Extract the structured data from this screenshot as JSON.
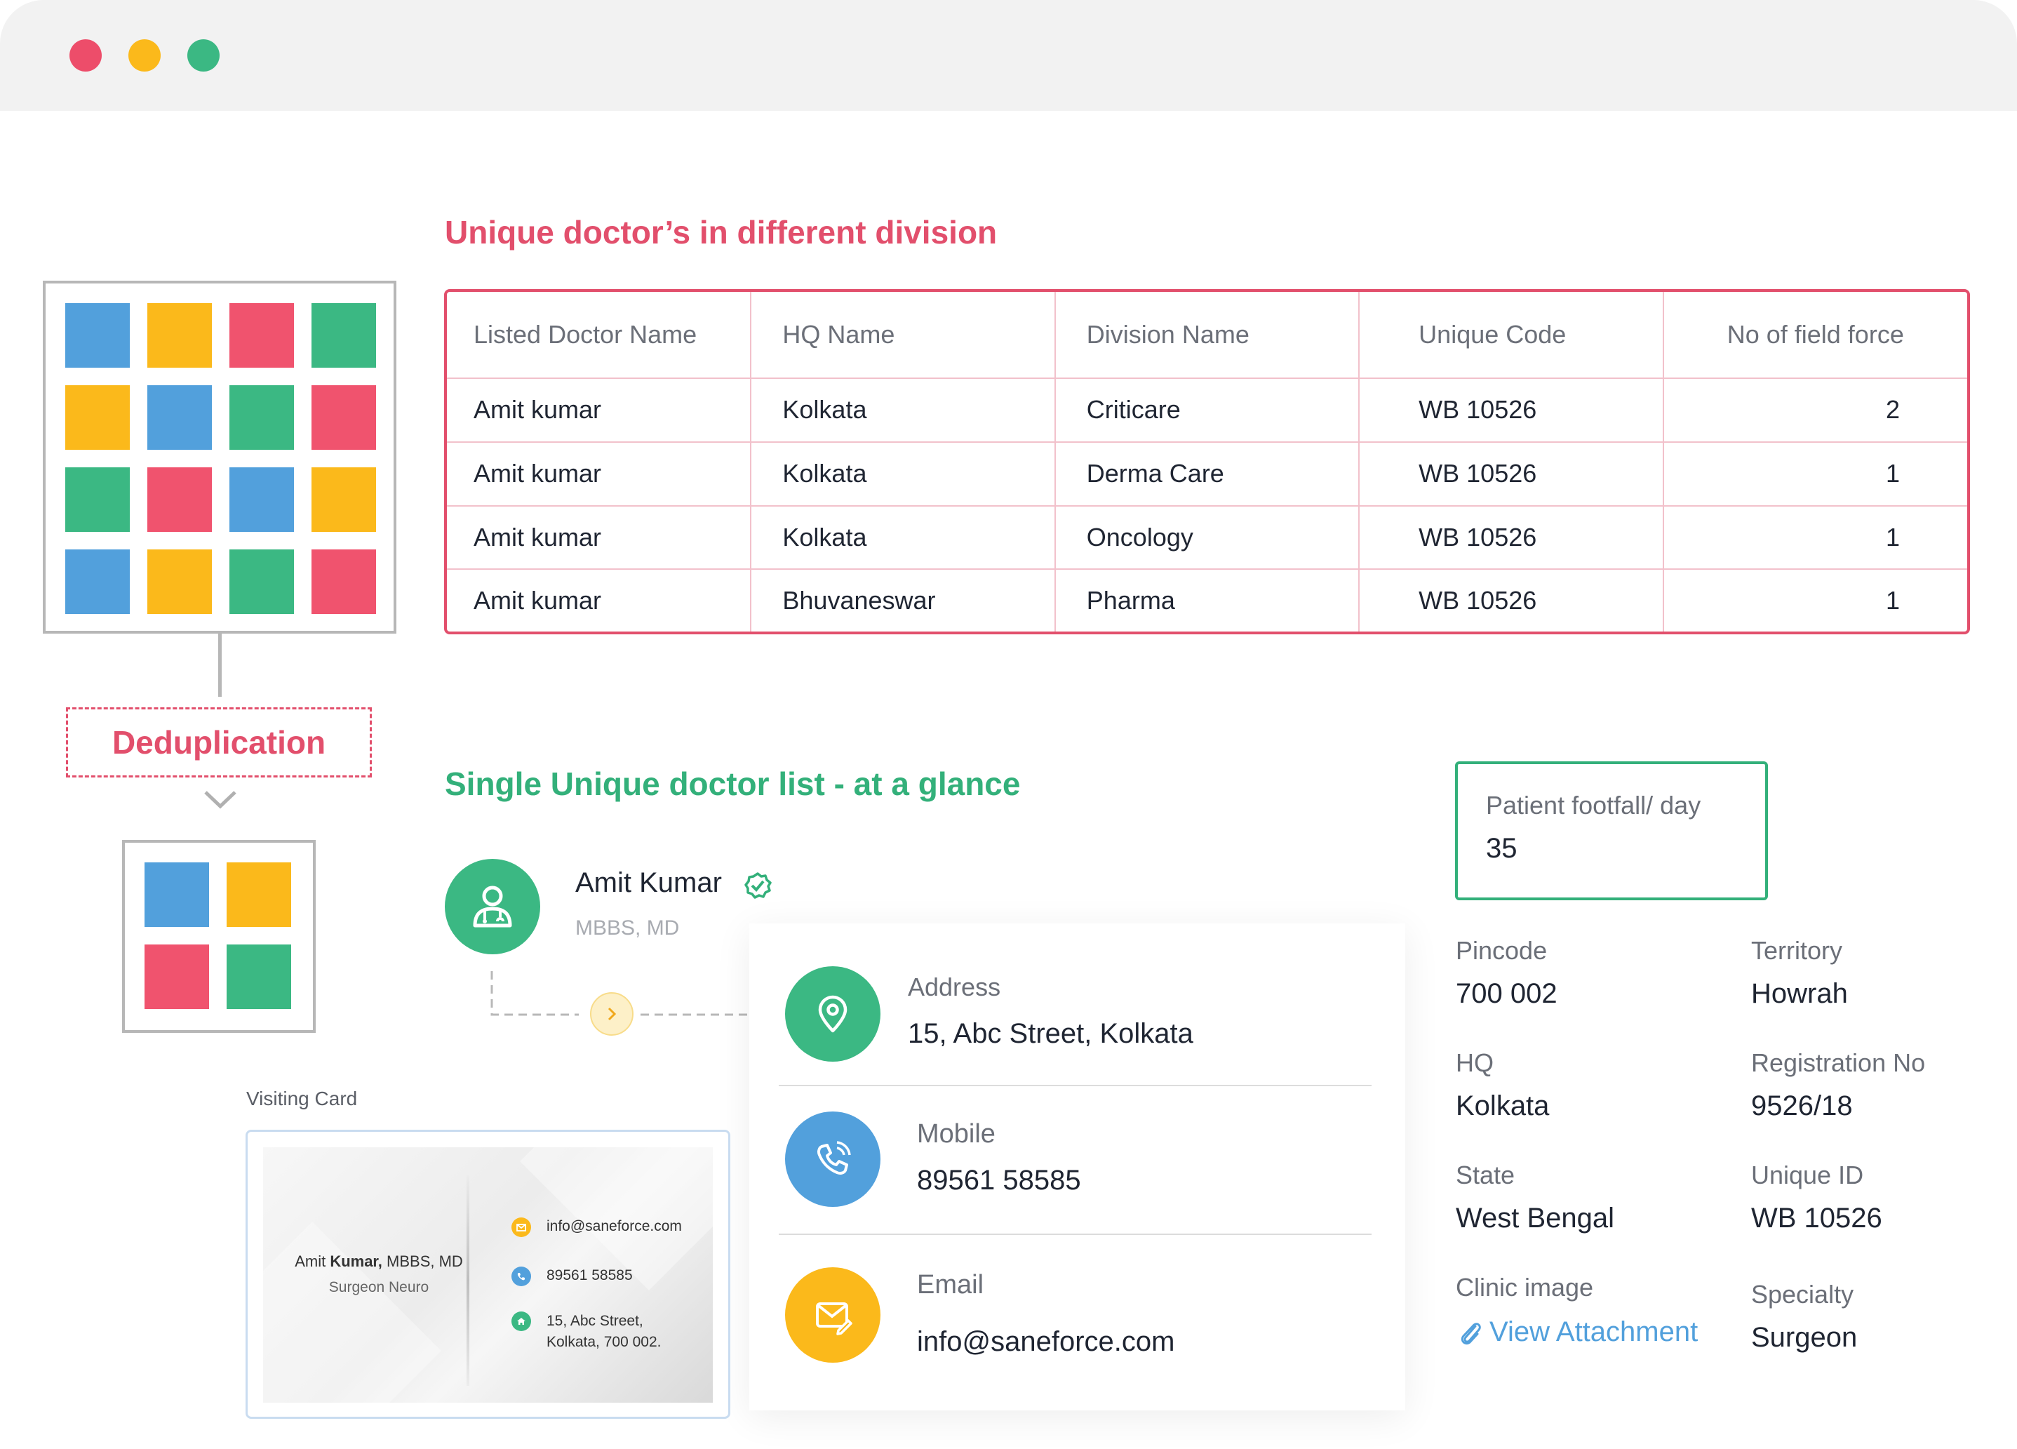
{
  "colors": {
    "red": "#f0536e",
    "yellow": "#fbb91b",
    "green": "#3bb883",
    "blue": "#52a0dc",
    "accent_red": "#e24f6c",
    "accent_green": "#33b07a"
  },
  "window": {
    "controls": [
      "close",
      "minimize",
      "maximize"
    ]
  },
  "unique_section": {
    "title": "Unique doctor’s in different division",
    "columns": [
      "Listed Doctor Name",
      "HQ Name",
      "Division Name",
      "Unique Code",
      "No of field force"
    ],
    "rows": [
      [
        "Amit kumar",
        "Kolkata",
        "Criticare",
        "WB 10526",
        "2"
      ],
      [
        "Amit kumar",
        "Kolkata",
        "Derma Care",
        "WB 10526",
        "1"
      ],
      [
        "Amit kumar",
        "Kolkata",
        "Oncology",
        "WB 10526",
        "1"
      ],
      [
        "Amit kumar",
        "Bhuvaneswar",
        "Pharma",
        "WB 10526",
        "1"
      ]
    ]
  },
  "dedup": {
    "label": "Deduplication",
    "before_grid": [
      [
        "blue",
        "yellow",
        "red",
        "green"
      ],
      [
        "yellow",
        "blue",
        "green",
        "red"
      ],
      [
        "green",
        "red",
        "blue",
        "yellow"
      ],
      [
        "blue",
        "yellow",
        "green",
        "red"
      ]
    ],
    "after_grid": [
      [
        "blue",
        "yellow"
      ],
      [
        "red",
        "green"
      ]
    ]
  },
  "single_section": {
    "title": "Single Unique doctor list - at a glance"
  },
  "doctor": {
    "name": "Amit Kumar",
    "qualification": "MBBS, MD",
    "icon": "doctor-icon",
    "verified_icon": "verified-check-icon"
  },
  "contact": {
    "address_label": "Address",
    "address_value": "15, Abc Street, Kolkata",
    "mobile_label": "Mobile",
    "mobile_value": "89561 58585",
    "email_label": "Email",
    "email_value": "info@saneforce.com"
  },
  "footfall": {
    "label": "Patient footfall/ day",
    "value": "35"
  },
  "details": {
    "pincode_label": "Pincode",
    "pincode_value": "700 002",
    "territory_label": "Territory",
    "territory_value": "Howrah",
    "hq_label": "HQ",
    "hq_value": "Kolkata",
    "registration_label": "Registration No",
    "registration_value": "9526/18",
    "state_label": "State",
    "state_value": "West Bengal",
    "unique_id_label": "Unique ID",
    "unique_id_value": "WB 10526",
    "clinic_image_label": "Clinic image",
    "clinic_image_link": "View Attachment",
    "specialty_label": "Specialty",
    "specialty_value": "Surgeon"
  },
  "visiting_card": {
    "label": "Visiting Card",
    "name_prefix": "Amit ",
    "name_bold": "Kumar,",
    "name_suffix": " MBBS, MD",
    "title": "Surgeon Neuro",
    "email": "info@saneforce.com",
    "phone": "89561 58585",
    "address_line1": "15, Abc Street,",
    "address_line2": "Kolkata, 700 002."
  }
}
